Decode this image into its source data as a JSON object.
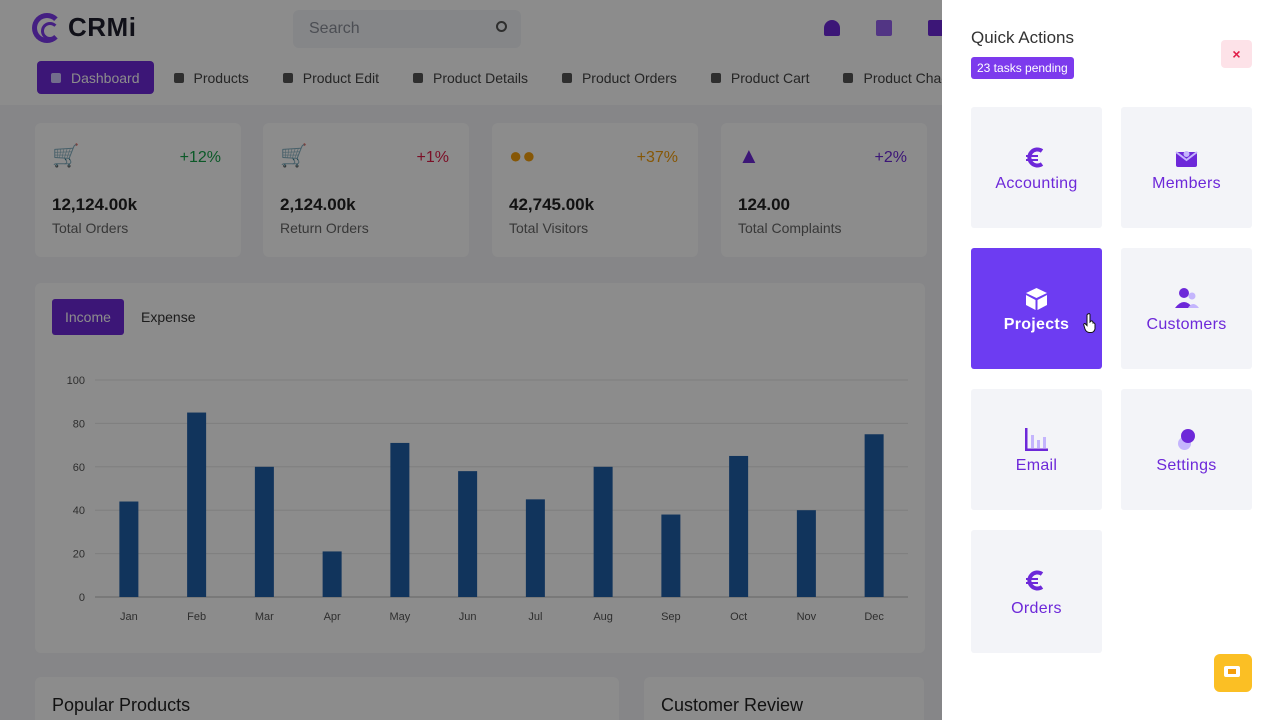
{
  "app": {
    "brand": "CRMi",
    "search_placeholder": "Search",
    "nav": [
      {
        "label": "Dashboard",
        "active": true
      },
      {
        "label": "Products"
      },
      {
        "label": "Product Edit"
      },
      {
        "label": "Product Details"
      },
      {
        "label": "Product Orders"
      },
      {
        "label": "Product Cart"
      },
      {
        "label": "Product Chackout"
      }
    ],
    "stats": [
      {
        "value": "12,124.00k",
        "label": "Total Orders",
        "change": "+12%",
        "color": "#16a34a",
        "icon": "cart-plus-icon"
      },
      {
        "value": "2,124.00k",
        "label": "Return Orders",
        "change": "+1%",
        "color": "#e11d48",
        "icon": "cart-return-icon"
      },
      {
        "value": "42,745.00k",
        "label": "Total Visitors",
        "change": "+37%",
        "color": "#f59e0b",
        "icon": "users-icon"
      },
      {
        "value": "124.00",
        "label": "Total Complaints",
        "change": "+2%",
        "color": "#6d28d9",
        "icon": "warning-icon"
      }
    ],
    "chart_tabs": {
      "income": "Income",
      "expense": "Expense"
    },
    "bottom_cards": {
      "popular": "Popular Products",
      "review": "Customer Review"
    }
  },
  "chart_data": {
    "type": "bar",
    "categories": [
      "Jan",
      "Feb",
      "Mar",
      "Apr",
      "May",
      "Jun",
      "Jul",
      "Aug",
      "Sep",
      "Oct",
      "Nov",
      "Dec"
    ],
    "values": [
      44,
      85,
      60,
      21,
      71,
      58,
      45,
      60,
      38,
      65,
      40,
      75
    ],
    "yticks": [
      0,
      20,
      40,
      60,
      80,
      100
    ],
    "ylim": [
      0,
      100
    ],
    "grid": true,
    "color": "#1f5fa8"
  },
  "panel": {
    "title": "Quick Actions",
    "badge": "23 tasks pending",
    "close": "×",
    "tiles": [
      {
        "label": "Accounting",
        "icon": "euro-icon"
      },
      {
        "label": "Members",
        "icon": "mail-open-icon"
      },
      {
        "label": "Projects",
        "icon": "box-icon",
        "active": true
      },
      {
        "label": "Customers",
        "icon": "users-icon"
      },
      {
        "label": "Email",
        "icon": "bar-chart-icon"
      },
      {
        "label": "Settings",
        "icon": "settings-icon"
      },
      {
        "label": "Orders",
        "icon": "euro-icon"
      }
    ]
  },
  "colors": {
    "accent": "#6d28d9",
    "tile_active": "#6d3cf2",
    "close_bg": "#fde2e8",
    "chat": "#fbbf24"
  }
}
